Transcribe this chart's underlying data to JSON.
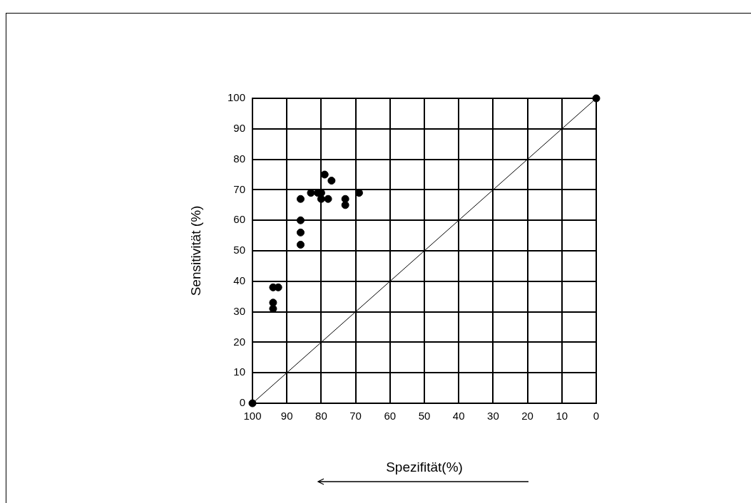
{
  "chart_data": {
    "type": "scatter",
    "xlabel": "Spezifität(%)",
    "ylabel": "Sensitivität (%)",
    "xlim": [
      100,
      0
    ],
    "xticks": [
      100,
      90,
      80,
      70,
      60,
      50,
      40,
      30,
      20,
      10,
      0
    ],
    "ylim": [
      0,
      100
    ],
    "yticks": [
      0,
      10,
      20,
      30,
      40,
      50,
      60,
      70,
      80,
      90,
      100
    ],
    "grid": true,
    "legend": false,
    "marker": "circle",
    "series": [
      {
        "color": "#000000",
        "x": [
          100,
          0,
          79,
          77,
          69,
          86,
          83,
          81,
          80,
          80,
          78,
          73,
          73,
          86,
          86,
          86,
          94,
          92.5,
          94,
          94
        ],
        "values": [
          0,
          100,
          75,
          73,
          69,
          67,
          69,
          69,
          69,
          67,
          67,
          67,
          65,
          60,
          56,
          52,
          38,
          38,
          33,
          31
        ]
      },
      {
        "type": "line",
        "color": "#000000",
        "line_style": "solid",
        "marker": "none",
        "x": [
          100,
          0
        ],
        "values": [
          0,
          100
        ]
      }
    ]
  }
}
